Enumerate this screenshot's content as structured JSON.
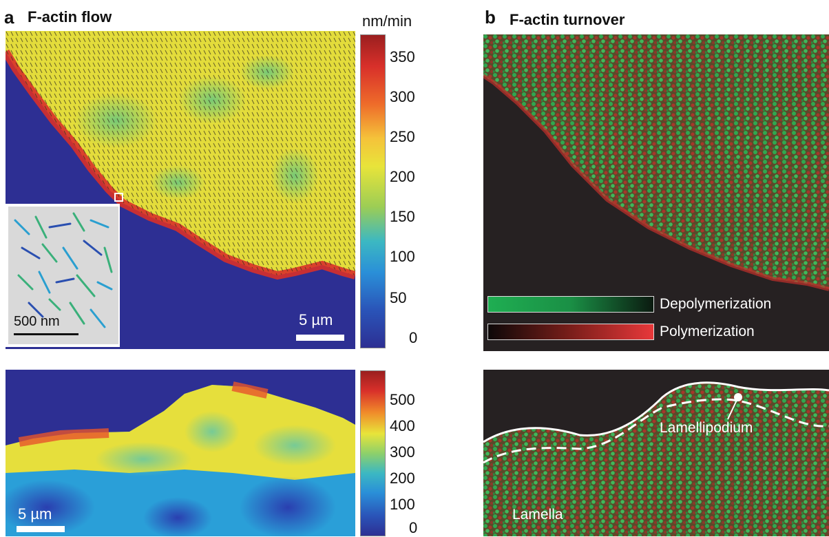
{
  "panel_a": {
    "letter": "a",
    "title": "F-actin flow",
    "colorbar_unit": "nm/min",
    "colorbar_top_ticks": [
      "350",
      "300",
      "250",
      "200",
      "150",
      "100",
      "50",
      "0"
    ],
    "colorbar_bottom_ticks": [
      "500",
      "400",
      "300",
      "200",
      "100",
      "0"
    ],
    "scalebar_top": "5 µm",
    "scalebar_bottom": "5 µm",
    "inset_scalebar": "500 nm"
  },
  "panel_b": {
    "letter": "b",
    "title": "F-actin turnover",
    "legend_depolymerization": "Depolymerization",
    "legend_polymerization": "Polymerization",
    "label_lamellipodium": "Lamellipodium",
    "label_lamella": "Lamella"
  },
  "colors": {
    "background_blue": "#2d2f93",
    "flow_yellow": "#e8df3a",
    "edge_red": "#d8302a",
    "dark_bg": "#262122",
    "green_signal": "#2fa84f",
    "red_signal": "#c2302b"
  }
}
